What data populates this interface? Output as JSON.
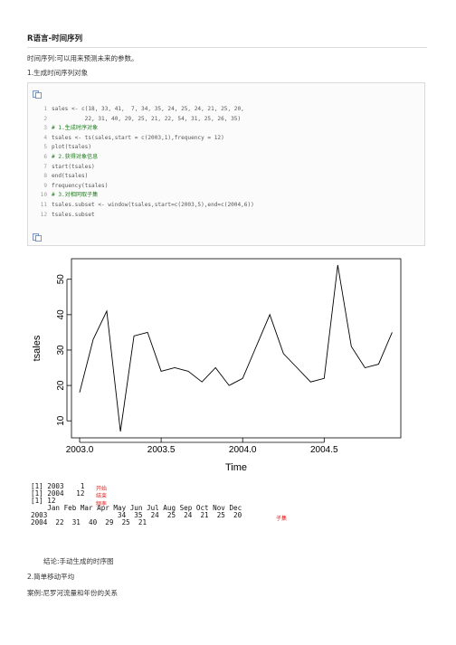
{
  "doc": {
    "title": "R语言-时间序列",
    "intro": "时间序列:可以用来预测未来的参数。",
    "section1": "1.生成时间序列对象",
    "conclusion": "结论:手动生成的时序图",
    "section2": "2.简单移动平均",
    "case": "案例:尼罗河流量和年份的关系"
  },
  "code": {
    "lines": [
      {
        "n": "1",
        "text": "sales <- c(18, 33, 41,  7, 34, 35, 24, 25, 24, 21, 25, 20,",
        "comment": false
      },
      {
        "n": "2",
        "text": "          22, 31, 40, 29, 25, 21, 22, 54, 31, 25, 26, 35)",
        "comment": false
      },
      {
        "n": "3",
        "text": "# 1.生成时序对象",
        "comment": true
      },
      {
        "n": "4",
        "text": "tsales <- ts(sales,start = c(2003,1),frequency = 12)",
        "comment": false
      },
      {
        "n": "5",
        "text": "plot(tsales)",
        "comment": false
      },
      {
        "n": "6",
        "text": "# 2.获得对象信息",
        "comment": true
      },
      {
        "n": "7",
        "text": "start(tsales)",
        "comment": false
      },
      {
        "n": "8",
        "text": "end(tsales)",
        "comment": false
      },
      {
        "n": "9",
        "text": "frequency(tsales)",
        "comment": false
      },
      {
        "n": "10",
        "text": "# 3.对相同取子集",
        "comment": true
      },
      {
        "n": "11",
        "text": "tsales.subset <- window(tsales,start=c(2003,5),end=c(2004,6))",
        "comment": false
      },
      {
        "n": "12",
        "text": "tsales.subset",
        "comment": false
      }
    ]
  },
  "chart_data": {
    "type": "line",
    "x_start": 2003.0,
    "frequency": 12,
    "values": [
      18,
      33,
      41,
      7,
      34,
      35,
      24,
      25,
      24,
      21,
      25,
      20,
      22,
      31,
      40,
      29,
      25,
      21,
      22,
      54,
      31,
      25,
      26,
      35
    ],
    "xlabel": "Time",
    "ylabel": "tsales",
    "xticks": [
      2003.0,
      2003.5,
      2004.0,
      2004.5
    ],
    "xtick_labels": [
      "2003.0",
      "2003.5",
      "2004.0",
      "2004.5"
    ],
    "yticks": [
      10,
      20,
      30,
      40,
      50
    ],
    "xlim": [
      2002.95,
      2004.97
    ],
    "ylim": [
      5.2,
      55.8
    ],
    "grid": false
  },
  "console": {
    "lines": [
      "[1] 2003    1",
      "[1] 2004   12",
      "[1] 12",
      "    Jan Feb Mar Apr May Jun Jul Aug Sep Oct Nov Dec",
      "2003                 34  35  24  25  24  21  25  20",
      "2004  22  31  40  29  25  21"
    ],
    "annotations": {
      "start": "开始",
      "end": "结束",
      "freq": "频率",
      "subset": "子集"
    }
  }
}
